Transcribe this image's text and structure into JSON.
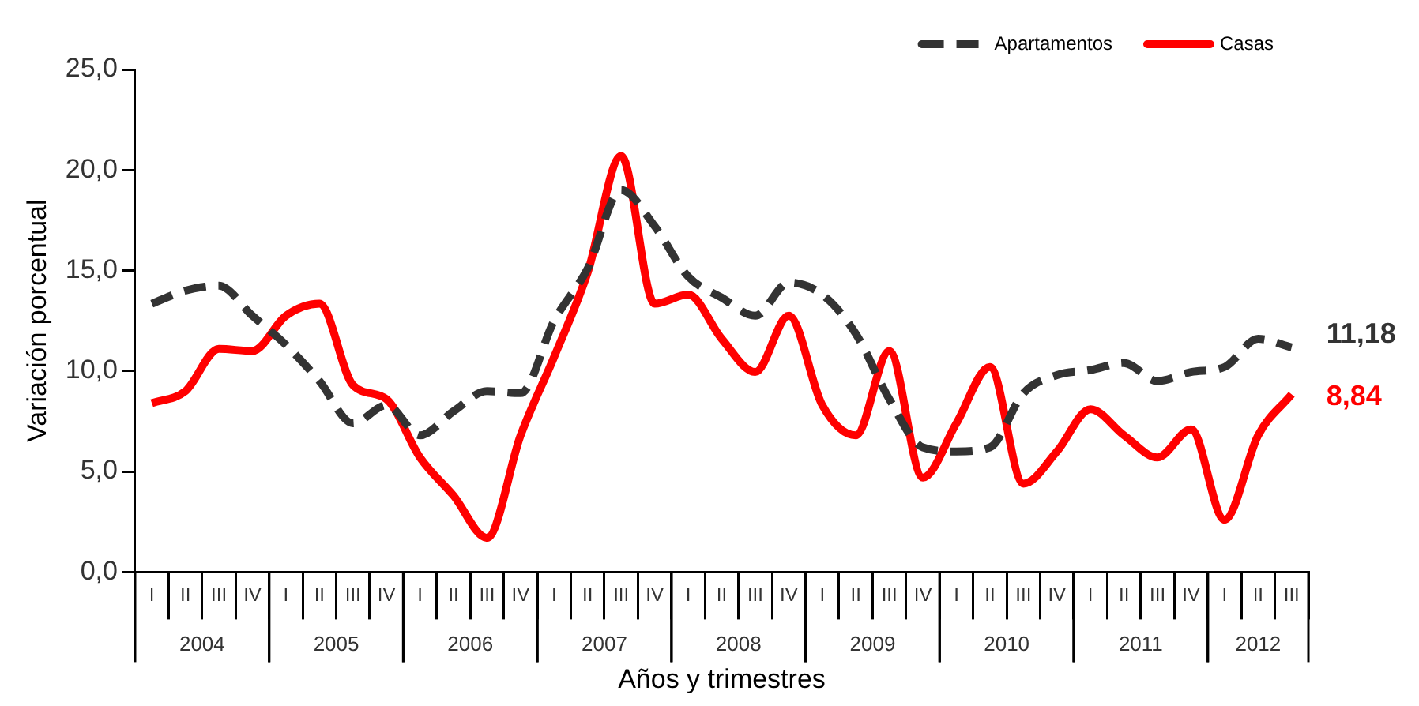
{
  "chart_data": {
    "type": "line",
    "xlabel": "Años y trimestres",
    "ylabel": "Variación porcentual",
    "categories": [
      "I",
      "II",
      "III",
      "IV",
      "I",
      "II",
      "III",
      "IV",
      "I",
      "II",
      "III",
      "IV",
      "I",
      "II",
      "III",
      "IV",
      "I",
      "II",
      "III",
      "IV",
      "I",
      "II",
      "III",
      "IV",
      "I",
      "II",
      "III",
      "IV",
      "I",
      "II",
      "III",
      "IV",
      "I",
      "II",
      "III"
    ],
    "annotations": [
      "2004",
      "2005",
      "2006",
      "2007",
      "2008",
      "2009",
      "2010",
      "2011",
      "2012"
    ],
    "series": [
      {
        "name": "Apartamentos",
        "color": "#333333",
        "line_style": "dashed",
        "values": [
          13.35,
          14.0,
          14.25,
          12.75,
          11.3,
          9.5,
          7.4,
          8.3,
          6.8,
          8.0,
          9.0,
          8.9,
          12.5,
          15.1,
          19.0,
          17.2,
          14.7,
          13.65,
          12.75,
          14.4,
          13.8,
          11.85,
          8.6,
          6.2,
          6.0,
          6.2,
          8.9,
          9.8,
          10.05,
          10.4,
          9.5,
          9.95,
          10.2,
          11.6,
          11.18
        ],
        "value_labels": [
          null,
          null,
          null,
          null,
          null,
          null,
          null,
          null,
          null,
          null,
          null,
          null,
          null,
          null,
          null,
          null,
          null,
          null,
          null,
          null,
          null,
          null,
          null,
          null,
          null,
          null,
          null,
          null,
          null,
          null,
          null,
          null,
          null,
          null,
          "11,18"
        ]
      },
      {
        "name": "Casas",
        "color": "#ff0000",
        "line_style": "solid",
        "values": [
          8.4,
          9.0,
          11.1,
          11.0,
          12.75,
          13.35,
          9.3,
          8.6,
          5.7,
          3.8,
          1.7,
          6.8,
          10.7,
          14.9,
          20.7,
          13.35,
          13.8,
          11.6,
          9.95,
          12.75,
          8.3,
          6.8,
          11.0,
          4.7,
          7.4,
          10.2,
          4.4,
          6.0,
          8.1,
          6.8,
          5.7,
          7.1,
          2.6,
          6.8,
          8.84
        ],
        "value_labels": [
          null,
          null,
          null,
          null,
          null,
          null,
          null,
          null,
          null,
          null,
          null,
          null,
          null,
          null,
          null,
          null,
          null,
          null,
          null,
          null,
          null,
          null,
          null,
          null,
          null,
          null,
          null,
          null,
          null,
          null,
          null,
          null,
          null,
          null,
          "8,84"
        ]
      }
    ],
    "ylim": [
      0,
      25
    ],
    "yticks": [
      {
        "value": 0,
        "label": "0,0"
      },
      {
        "value": 5,
        "label": "5,0"
      },
      {
        "value": 10,
        "label": "10,0"
      },
      {
        "value": 15,
        "label": "15,0"
      },
      {
        "value": 20,
        "label": "20,0"
      },
      {
        "value": 25,
        "label": "25,0"
      }
    ],
    "grid": false,
    "legend": "top right",
    "marker": "none"
  }
}
